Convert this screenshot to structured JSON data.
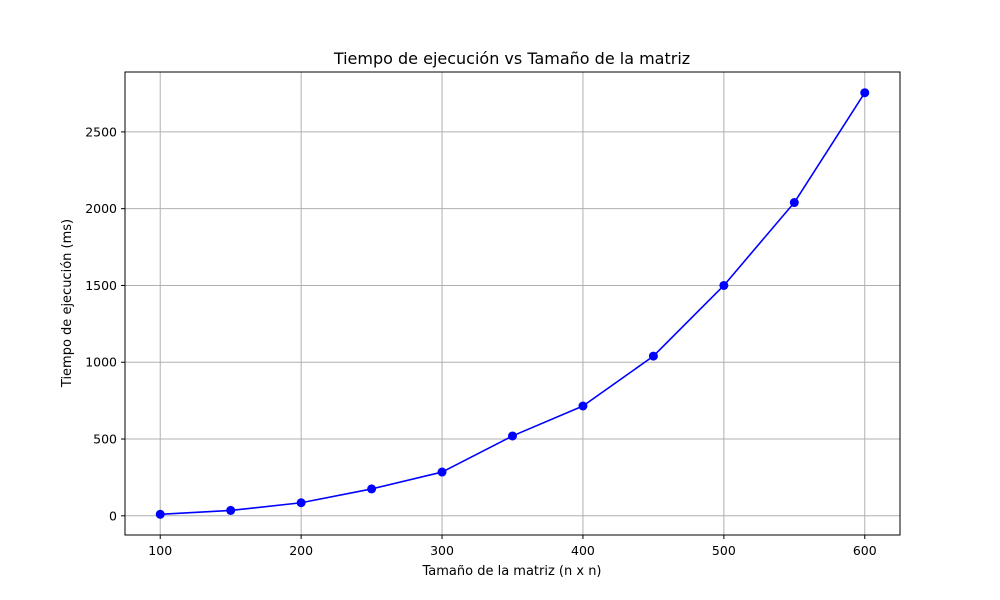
{
  "chart_data": {
    "type": "line",
    "title": "Tiempo de ejecución vs Tamaño de la matriz",
    "xlabel": "Tamaño de la matriz (n x n)",
    "ylabel": "Tiempo de ejecución (ms)",
    "x_ticks": [
      100,
      200,
      300,
      400,
      500,
      600
    ],
    "y_ticks": [
      0,
      500,
      1000,
      1500,
      2000,
      2500
    ],
    "xlim": [
      75,
      625
    ],
    "ylim": [
      -125,
      2890
    ],
    "grid": true,
    "series": [
      {
        "color": "#0000ff",
        "marker": "circle",
        "x": [
          100,
          150,
          200,
          250,
          300,
          350,
          400,
          450,
          500,
          550,
          600
        ],
        "y": [
          10,
          35,
          85,
          175,
          285,
          520,
          715,
          1040,
          1500,
          2040,
          2755
        ]
      }
    ]
  }
}
